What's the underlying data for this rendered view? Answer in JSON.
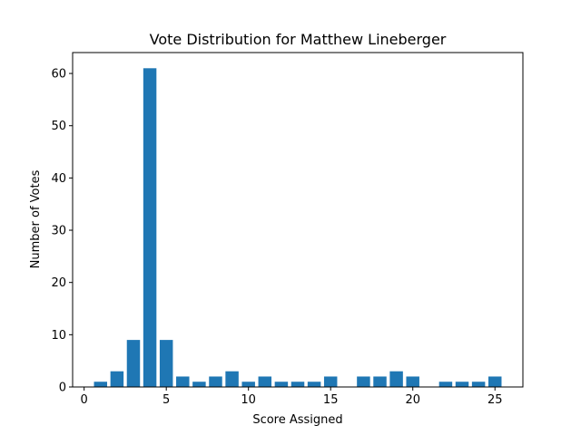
{
  "chart_data": {
    "type": "bar",
    "title": "Vote Distribution for Matthew Lineberger",
    "xlabel": "Score Assigned",
    "ylabel": "Number of Votes",
    "x": [
      1,
      2,
      3,
      4,
      5,
      6,
      7,
      8,
      9,
      10,
      11,
      12,
      13,
      14,
      15,
      16,
      17,
      18,
      19,
      20,
      21,
      22,
      23,
      24,
      25
    ],
    "values": [
      1,
      3,
      9,
      61,
      9,
      2,
      1,
      2,
      3,
      1,
      2,
      1,
      1,
      1,
      2,
      0,
      2,
      2,
      3,
      2,
      0,
      1,
      1,
      1,
      2
    ],
    "xlim": [
      -0.7,
      26.7
    ],
    "ylim": [
      0,
      64
    ],
    "xticks": [
      0,
      5,
      10,
      15,
      20,
      25
    ],
    "yticks": [
      0,
      10,
      20,
      30,
      40,
      50,
      60
    ],
    "bar_color": "#1f77b4",
    "grid": false,
    "legend": "none"
  }
}
